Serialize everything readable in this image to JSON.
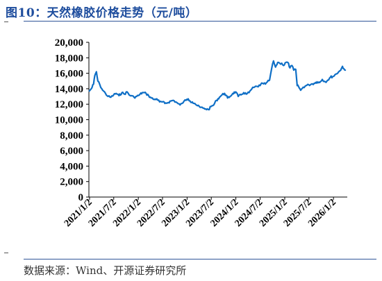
{
  "title": "图10：天然橡胶价格走势（元/吨）",
  "source": "数据来源：Wind、开源证券研究所",
  "colors": {
    "line": "#0f6fc6",
    "title": "#1f4e9e",
    "axis": "#000000"
  },
  "chart_data": {
    "type": "line",
    "title": "图10：天然橡胶价格走势（元/吨）",
    "xlabel": "",
    "ylabel": "",
    "ylim": [
      0,
      20000
    ],
    "yticks": [
      0,
      2000,
      4000,
      6000,
      8000,
      10000,
      12000,
      14000,
      16000,
      18000,
      20000
    ],
    "ytick_labels": [
      "0",
      "2,000",
      "4,000",
      "6,000",
      "8,000",
      "10,000",
      "12,000",
      "14,000",
      "16,000",
      "18,000",
      "20,000"
    ],
    "xlim": [
      "2020-12-28",
      "2026-04-15"
    ],
    "xticks": [
      "2021-01-02",
      "2021-07-02",
      "2022-01-02",
      "2022-07-02",
      "2023-01-02",
      "2023-07-02",
      "2024-01-02",
      "2024-07-02",
      "2025-01-02",
      "2025-07-02",
      "2026-01-02"
    ],
    "xtick_labels": [
      "2021/1/2",
      "2021/7/2",
      "2022/1/2",
      "2022/7/2",
      "2023/1/2",
      "2023/7/2",
      "2024/1/2",
      "2024/7/2",
      "2025/1/2",
      "2025/7/2",
      "2026/1/2"
    ],
    "grid": false,
    "legend": "none",
    "series": [
      {
        "x": [
          "2020-12-31",
          "2021-01-15",
          "2021-02-01",
          "2021-02-10",
          "2021-02-22",
          "2021-03-05",
          "2021-03-20",
          "2021-04-10",
          "2021-05-01",
          "2021-05-20",
          "2021-06-10",
          "2021-07-01",
          "2021-07-20",
          "2021-08-10",
          "2021-09-01",
          "2021-09-20",
          "2021-10-10",
          "2021-10-25",
          "2021-11-10",
          "2021-12-01",
          "2021-12-20",
          "2022-01-10",
          "2022-02-01",
          "2022-03-01",
          "2022-03-20",
          "2022-04-10",
          "2022-05-01",
          "2022-05-20",
          "2022-06-10",
          "2022-07-01",
          "2022-07-20",
          "2022-08-10",
          "2022-09-01",
          "2022-09-20",
          "2022-10-10",
          "2022-10-25",
          "2022-11-10",
          "2022-11-25",
          "2022-12-10",
          "2022-12-25",
          "2023-01-10",
          "2023-01-25",
          "2023-02-10",
          "2023-03-01",
          "2023-03-20",
          "2023-04-10",
          "2023-05-01",
          "2023-05-20",
          "2023-06-10",
          "2023-07-01",
          "2023-07-20",
          "2023-08-10",
          "2023-09-01",
          "2023-09-20",
          "2023-10-10",
          "2023-11-01",
          "2023-11-20",
          "2023-12-10",
          "2024-01-01",
          "2024-01-20",
          "2024-02-10",
          "2024-03-01",
          "2024-03-20",
          "2024-04-10",
          "2024-05-01",
          "2024-05-20",
          "2024-06-10",
          "2024-07-01",
          "2024-07-20",
          "2024-08-10",
          "2024-08-25",
          "2024-09-10",
          "2024-09-25",
          "2024-10-10",
          "2024-10-25",
          "2024-11-10",
          "2024-11-25",
          "2024-12-10",
          "2024-12-25",
          "2025-01-10",
          "2025-01-25",
          "2025-02-10",
          "2025-02-25",
          "2025-03-10",
          "2025-03-25",
          "2025-04-05",
          "2025-04-15",
          "2025-05-01",
          "2025-05-20",
          "2025-06-10",
          "2025-07-01",
          "2025-07-20",
          "2025-08-10",
          "2025-09-01",
          "2025-09-20",
          "2025-10-10",
          "2025-11-01",
          "2025-11-20",
          "2025-12-10",
          "2026-01-01",
          "2026-01-20",
          "2026-02-10",
          "2026-02-25",
          "2026-03-10",
          "2026-03-20",
          "2026-03-31"
        ],
        "y": [
          13700,
          14000,
          14600,
          15700,
          16200,
          15000,
          14500,
          13800,
          13400,
          13000,
          12900,
          13200,
          13400,
          13100,
          13500,
          13300,
          13600,
          13200,
          13100,
          12900,
          13000,
          13200,
          13500,
          13400,
          13100,
          12800,
          12600,
          12700,
          12300,
          12300,
          12100,
          12200,
          12400,
          12500,
          12300,
          12100,
          11900,
          12100,
          12400,
          12500,
          12700,
          12400,
          12300,
          12100,
          11800,
          11600,
          11500,
          11400,
          11300,
          11700,
          11900,
          12500,
          12900,
          13200,
          13400,
          12800,
          13000,
          13400,
          13600,
          13000,
          13200,
          13500,
          13300,
          13500,
          14000,
          14200,
          14300,
          14400,
          14700,
          14600,
          14900,
          15100,
          16500,
          17600,
          16800,
          17400,
          17300,
          17300,
          17000,
          17400,
          17400,
          16700,
          17000,
          16400,
          16500,
          14400,
          14300,
          13800,
          14200,
          14400,
          14500,
          14600,
          14700,
          14900,
          14800,
          15200,
          14900,
          15100,
          15500,
          15600,
          15900,
          16200,
          16400,
          16900,
          16600,
          16400
        ]
      }
    ]
  }
}
